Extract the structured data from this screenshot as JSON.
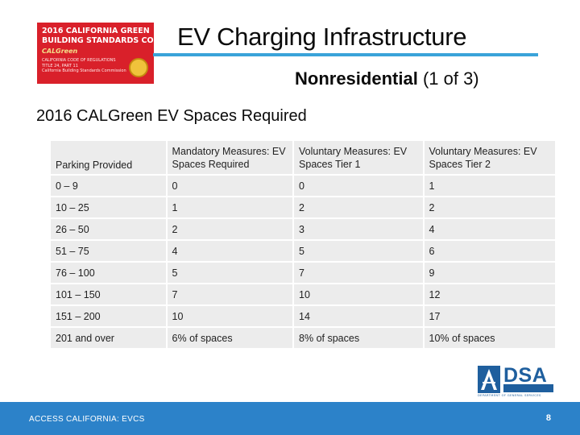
{
  "cover": {
    "line1": "2016 CALIFORNIA GREEN",
    "line2": "BUILDING STANDARDS CODE",
    "brand": "CALGreen",
    "line3": "CALIFORNIA CODE OF REGULATIONS",
    "line4": "TITLE 24, PART 11",
    "line5": "California Building Standards Commission"
  },
  "title": "EV Charging Infrastructure",
  "subtitle": {
    "main": "Nonresidential",
    "paren": "(1 of 3)"
  },
  "heading": "2016 CALGreen EV Spaces Required",
  "table": {
    "headers": [
      "Parking Provided",
      "Mandatory Measures: EV Spaces Required",
      "Voluntary Measures: EV Spaces Tier 1",
      "Voluntary Measures: EV Spaces Tier 2"
    ],
    "rows": [
      [
        "0 – 9",
        "0",
        "0",
        "1"
      ],
      [
        "10 – 25",
        "1",
        "2",
        "2"
      ],
      [
        "26 – 50",
        "2",
        "3",
        "4"
      ],
      [
        "51 – 75",
        "4",
        "5",
        "6"
      ],
      [
        "76 – 100",
        "5",
        "7",
        "9"
      ],
      [
        "101 – 150",
        "7",
        "10",
        "12"
      ],
      [
        "151 – 200",
        "10",
        "14",
        "17"
      ],
      [
        "201 and over",
        "6% of spaces",
        "8% of spaces",
        "10% of spaces"
      ]
    ]
  },
  "logo": {
    "word": "DSA",
    "dept": "DEPARTMENT OF GENERAL SERVICES"
  },
  "footer": {
    "text": "ACCESS CALIFORNIA: EVCS",
    "page": "8"
  },
  "colors": {
    "accent": "#3aa3d9",
    "footer": "#2c82c9",
    "cover": "#d9202a",
    "dsa": "#1f5f9e"
  }
}
